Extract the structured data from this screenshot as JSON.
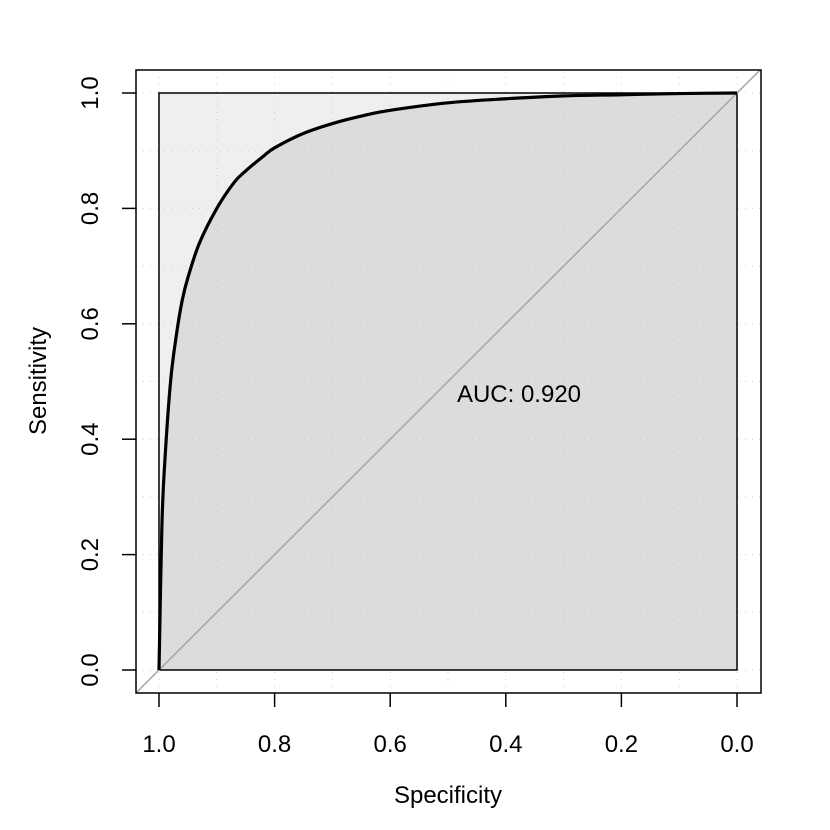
{
  "chart_data": {
    "type": "line",
    "title": "",
    "xlabel": "Specificity",
    "ylabel": "Sensitivity",
    "xlim": [
      1.0,
      0.0
    ],
    "ylim": [
      0.0,
      1.0
    ],
    "x_reversed": true,
    "xticks": [
      "1.0",
      "0.8",
      "0.6",
      "0.4",
      "0.2",
      "0.0"
    ],
    "yticks": [
      "0.0",
      "0.2",
      "0.4",
      "0.6",
      "0.8",
      "1.0"
    ],
    "grid": true,
    "legend": "none",
    "annotation": "AUC: 0.920",
    "series": [
      {
        "values_x_specificity": [
          1.0,
          0.995,
          0.99,
          0.98,
          0.97,
          0.96,
          0.95,
          0.93,
          0.9,
          0.87,
          0.85,
          0.82,
          0.8,
          0.75,
          0.7,
          0.65,
          0.6,
          0.5,
          0.4,
          0.3,
          0.2,
          0.1,
          0.0
        ],
        "values_y_sensitivity": [
          0.0,
          0.25,
          0.36,
          0.5,
          0.58,
          0.64,
          0.68,
          0.74,
          0.8,
          0.845,
          0.865,
          0.89,
          0.905,
          0.93,
          0.947,
          0.96,
          0.97,
          0.983,
          0.99,
          0.995,
          0.997,
          0.999,
          1.0
        ]
      }
    ],
    "colors": {
      "curve": "#000000",
      "auc_fill": "#dcdcdc",
      "upper_fill": "#efefef",
      "diagonal": "#a6a6a6",
      "grid": "#cccccc"
    }
  }
}
